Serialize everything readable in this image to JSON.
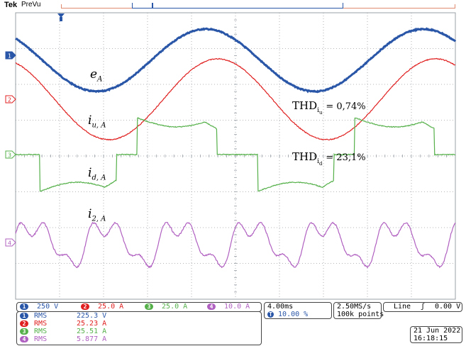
{
  "brand": {
    "name": "Tek",
    "mode": "PreVu"
  },
  "labels": {
    "ea_main": "e",
    "ea_sub": "A",
    "iu_main": "i",
    "iu_sub": "u, A",
    "id_main": "i",
    "id_sub": "d, A",
    "i2_main": "i",
    "i2_sub": "2, A",
    "thd_u_prefix": "THD",
    "thd_u_sub": "i",
    "thd_u_subsub": "u",
    "thd_u_value": "= 0,74%",
    "thd_d_prefix": "THD",
    "thd_d_sub": "i",
    "thd_d_subsub": "d",
    "thd_d_value": "= 23,1%"
  },
  "channels": [
    {
      "num": "1",
      "scale": "250 V",
      "color": "#2a56a8"
    },
    {
      "num": "2",
      "scale": "25.0 A",
      "color": "#e02020"
    },
    {
      "num": "3",
      "scale": "25.0 A",
      "color": "#55b04a"
    },
    {
      "num": "4",
      "scale": "10.0 A",
      "color": "#b060c0"
    }
  ],
  "timebase": {
    "time_div": "4.00ms",
    "trigger_pos": "10.00 %",
    "sample_rate": "2.50MS/s",
    "record": "100k points"
  },
  "trigger": {
    "source": "Line",
    "slope_symbol": "ʃ",
    "level": "0.00 V"
  },
  "measurements": [
    {
      "num": "1",
      "type": "RMS",
      "value": "225.3 V",
      "color": "#2a56a8"
    },
    {
      "num": "2",
      "type": "RMS",
      "value": "25.23 A",
      "color": "#e02020"
    },
    {
      "num": "3",
      "type": "RMS",
      "value": "25.51 A",
      "color": "#55b04a"
    },
    {
      "num": "4",
      "type": "RMS",
      "value": "5.877 A",
      "color": "#b060c0"
    }
  ],
  "datetime": {
    "date": "21 Jun 2022",
    "time": "16:18:15"
  },
  "colors": {
    "grid": "#9aa0a6",
    "ch1": "#2a56a8",
    "ch2": "#e02020",
    "ch3": "#55b04a",
    "ch4": "#b060c0"
  }
}
